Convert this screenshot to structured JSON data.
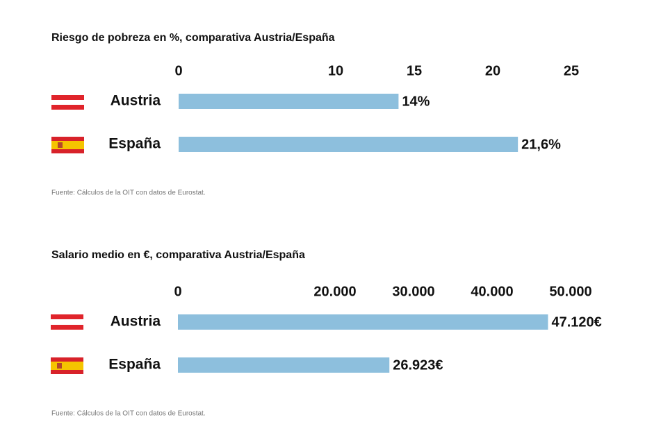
{
  "chart_data": [
    {
      "type": "bar",
      "title": "Riesgo de pobreza en %, comparativa Austria/España",
      "categories": [
        "Austria",
        "España"
      ],
      "values": [
        14,
        21.6
      ],
      "value_labels": [
        "14%",
        "21,6%"
      ],
      "color": "#8dbfdd",
      "xlim": [
        0,
        25
      ],
      "xticks": [
        0,
        10,
        15,
        20,
        25
      ],
      "note": "Fuente: Cálculos de la OIT con datos de Eurostat."
    },
    {
      "type": "bar",
      "title": "Salario medio en €, comparativa Austria/España",
      "categories": [
        "Austria",
        "España"
      ],
      "values": [
        47120,
        26923
      ],
      "value_labels": [
        "47.120€",
        "26.923€"
      ],
      "color": "#8dbfdd",
      "xlim": [
        0,
        50000
      ],
      "xticks": [
        0,
        {
          "value": 20000,
          "label": "20.000"
        },
        {
          "value": 30000,
          "label": "30.000"
        },
        {
          "value": 40000,
          "label": "40.000"
        },
        {
          "value": 50000,
          "label": "50.000"
        }
      ],
      "note": "Fuente: Cálculos de la OIT con datos de Eurostat."
    }
  ]
}
